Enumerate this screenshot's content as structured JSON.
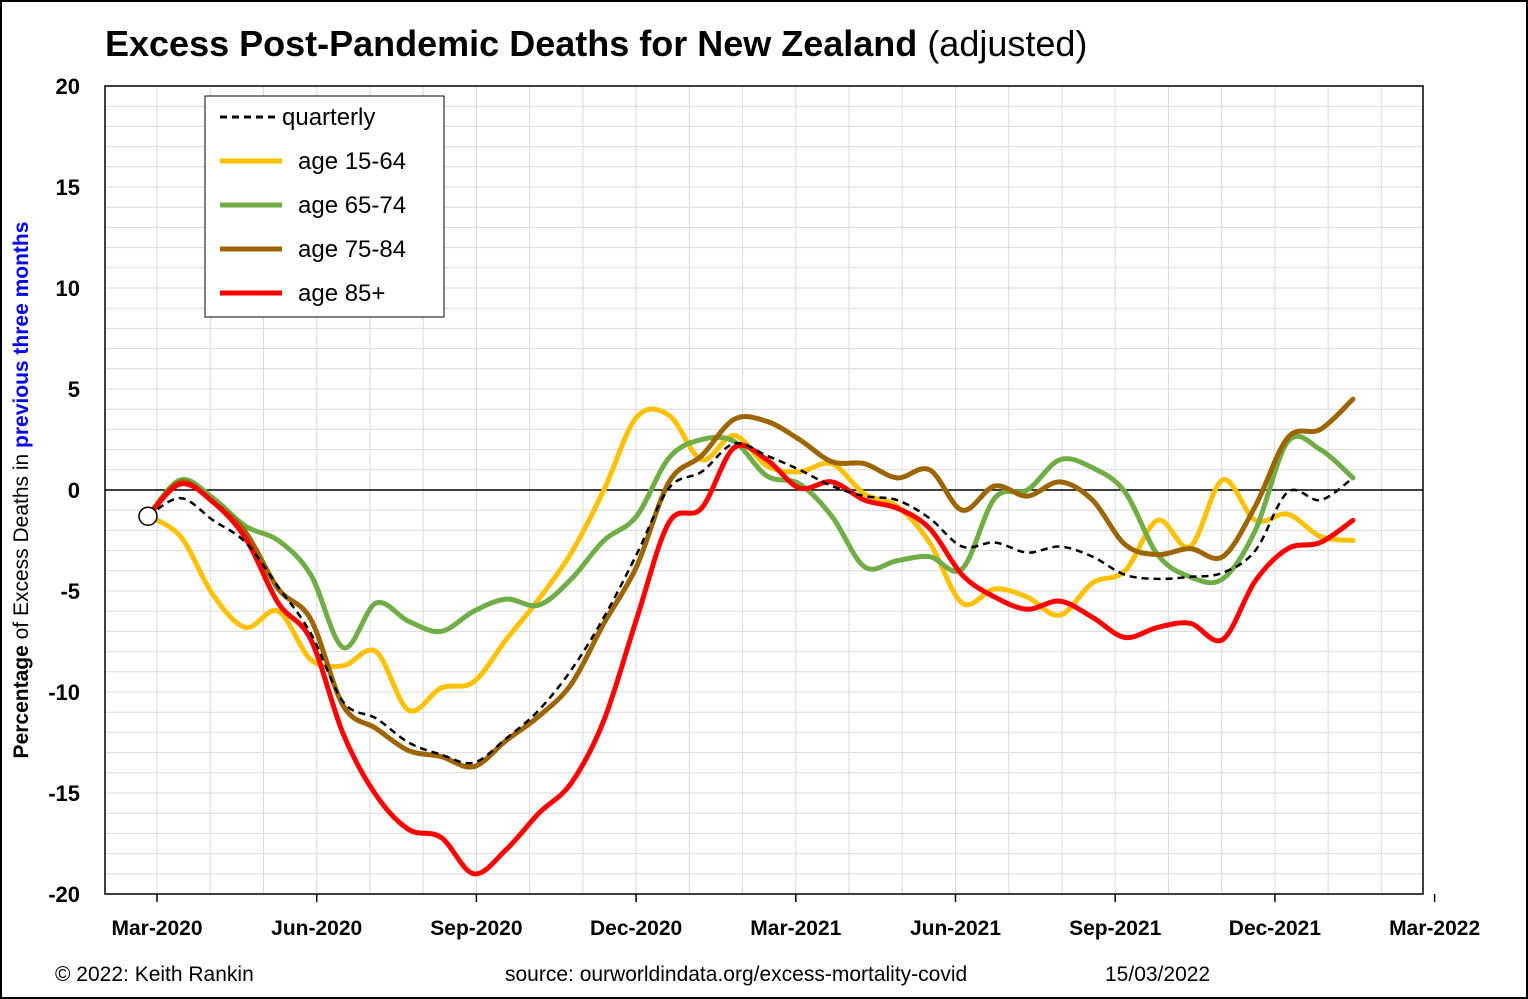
{
  "chart_data": {
    "type": "line",
    "title": "Excess Post-Pandemic Deaths for New Zealand",
    "title_suffix": "(adjusted)",
    "ylabel_parts": [
      "Percentage",
      " of Excess Deaths in ",
      "previous three months"
    ],
    "ylim": [
      -20,
      20
    ],
    "y_ticks": [
      20,
      15,
      10,
      5,
      0,
      -5,
      -10,
      -15,
      -20
    ],
    "x_ticks": [
      "Mar-2020",
      "Jun-2020",
      "Sep-2020",
      "Dec-2020",
      "Mar-2021",
      "Jun-2021",
      "Sep-2021",
      "Dec-2021",
      "Mar-2022"
    ],
    "grid": true,
    "legend_position": "top-left",
    "start_marker_value": -1.3,
    "series": [
      {
        "name": "quarterly",
        "color": "#000000",
        "dashed": true,
        "values": [
          -1.3,
          -0.4,
          -1.5,
          -2.6,
          -4.8,
          -7.1,
          -10.5,
          -11.3,
          -12.5,
          -13.1,
          -13.5,
          -12.3,
          -10.9,
          -8.9,
          -6.3,
          -3.2,
          0.1,
          0.9,
          2.3,
          1.7,
          1.0,
          0.2,
          -0.3,
          -0.5,
          -1.4,
          -2.8,
          -2.6,
          -3.1,
          -2.8,
          -3.3,
          -4.2,
          -4.4,
          -4.3,
          -4.1,
          -3.0,
          -0.1,
          -0.5,
          0.6
        ]
      },
      {
        "name": "age 15-64",
        "color": "#FFC000",
        "dashed": false,
        "values": [
          -1.3,
          -2.3,
          -5.2,
          -6.8,
          -6.0,
          -8.4,
          -8.7,
          -8.0,
          -10.9,
          -9.8,
          -9.5,
          -7.4,
          -5.4,
          -3.1,
          0.0,
          3.6,
          3.7,
          1.5,
          2.7,
          1.2,
          0.9,
          1.3,
          -0.2,
          -0.8,
          -2.6,
          -5.6,
          -4.9,
          -5.3,
          -6.2,
          -4.6,
          -4.0,
          -1.5,
          -2.8,
          0.5,
          -1.5,
          -1.2,
          -2.3,
          -2.5
        ]
      },
      {
        "name": "age 65-74",
        "color": "#70AD47",
        "dashed": false,
        "values": [
          -1.3,
          0.5,
          -0.4,
          -1.8,
          -2.5,
          -4.2,
          -7.8,
          -5.6,
          -6.5,
          -7.0,
          -6.0,
          -5.4,
          -5.7,
          -4.4,
          -2.5,
          -1.3,
          1.6,
          2.5,
          2.4,
          0.7,
          0.3,
          -1.3,
          -3.8,
          -3.5,
          -3.3,
          -3.9,
          -0.4,
          0.0,
          1.5,
          1.1,
          -0.1,
          -3.2,
          -4.3,
          -4.4,
          -2.0,
          2.4,
          2.0,
          0.6
        ]
      },
      {
        "name": "age 75-84",
        "color": "#9C6500",
        "dashed": false,
        "values": [
          -1.3,
          0.4,
          -0.6,
          -2.1,
          -4.9,
          -6.4,
          -10.7,
          -11.8,
          -12.9,
          -13.2,
          -13.7,
          -12.4,
          -11.2,
          -9.6,
          -6.6,
          -3.8,
          0.4,
          1.7,
          3.5,
          3.4,
          2.5,
          1.4,
          1.3,
          0.6,
          1.0,
          -1.0,
          0.2,
          -0.3,
          0.4,
          -0.5,
          -2.7,
          -3.2,
          -2.9,
          -3.3,
          -0.8,
          2.6,
          3.0,
          4.5
        ]
      },
      {
        "name": "age 85+",
        "color": "#FF0000",
        "dashed": false,
        "values": [
          -1.3,
          0.3,
          -0.6,
          -2.4,
          -5.6,
          -7.4,
          -12.1,
          -15.1,
          -16.8,
          -17.2,
          -19.0,
          -17.8,
          -16.0,
          -14.5,
          -11.4,
          -6.4,
          -1.6,
          -0.9,
          2.1,
          1.5,
          0.1,
          0.4,
          -0.5,
          -0.9,
          -1.9,
          -4.2,
          -5.3,
          -5.9,
          -5.5,
          -6.3,
          -7.3,
          -6.8,
          -6.6,
          -7.4,
          -4.5,
          -2.9,
          -2.6,
          -1.5
        ]
      }
    ]
  },
  "footer": {
    "copyright": "© 2022: Keith Rankin",
    "source": "source: ourworldindata.org/excess-mortality-covid",
    "date": "15/03/2022"
  }
}
